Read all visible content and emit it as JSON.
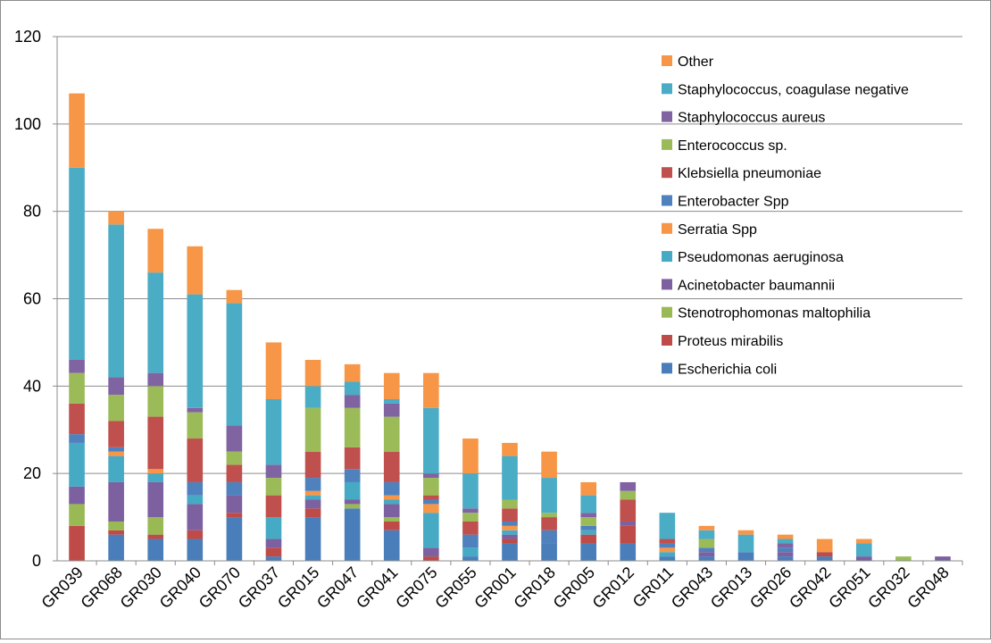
{
  "chart_data": {
    "type": "bar",
    "stacked": true,
    "title": "",
    "xlabel": "",
    "ylabel": "",
    "ylim": [
      0,
      120
    ],
    "yticks": [
      0,
      20,
      40,
      60,
      80,
      100,
      120
    ],
    "grid": true,
    "legend_position": "top-right",
    "categories": [
      "GR039",
      "GR068",
      "GR030",
      "GR040",
      "GR070",
      "GR037",
      "GR015",
      "GR047",
      "GR041",
      "GR075",
      "GR055",
      "GR001",
      "GR018",
      "GR005",
      "GR012",
      "GR011",
      "GR043",
      "GR013",
      "GR026",
      "GR042",
      "GR051",
      "GR032",
      "GR048"
    ],
    "series": [
      {
        "name": "Escherichia coli",
        "color": "#4a7ebb",
        "values": [
          0,
          6,
          5,
          5,
          10,
          1,
          10,
          12,
          7,
          0,
          1,
          4,
          4,
          4,
          4,
          1,
          1,
          2,
          1,
          1,
          0,
          0,
          0
        ]
      },
      {
        "name": "Proteus mirabilis",
        "color": "#be4b48",
        "values": [
          8,
          1,
          1,
          2,
          1,
          2,
          2,
          0,
          2,
          1,
          0,
          1,
          0,
          2,
          4,
          0,
          0,
          0,
          0,
          1,
          0,
          0,
          0
        ]
      },
      {
        "name": "Stenotrophomonas maltophilia",
        "color": "#98b954",
        "values": [
          5,
          2,
          4,
          0,
          0,
          0,
          0,
          1,
          1,
          0,
          0,
          0,
          0,
          0,
          0,
          0,
          0,
          0,
          0,
          0,
          0,
          0,
          0
        ]
      },
      {
        "name": "Acinetobacter baumannii",
        "color": "#7d60a0",
        "values": [
          4,
          9,
          8,
          6,
          4,
          2,
          2,
          1,
          3,
          2,
          0,
          1,
          0,
          0,
          1,
          0,
          1,
          0,
          1,
          0,
          1,
          0,
          1
        ]
      },
      {
        "name": "Pseudomonas aeruginosa",
        "color": "#46aac5",
        "values": [
          10,
          6,
          2,
          2,
          0,
          5,
          1,
          4,
          1,
          8,
          2,
          1,
          0,
          1,
          0,
          1,
          0,
          0,
          0,
          0,
          0,
          0,
          0
        ]
      },
      {
        "name": "Serratia Spp",
        "color": "#f79646",
        "values": [
          0,
          1,
          1,
          0,
          0,
          0,
          1,
          0,
          1,
          2,
          0,
          1,
          0,
          0,
          0,
          1,
          0,
          0,
          0,
          3,
          0,
          0,
          0
        ]
      },
      {
        "name": "Enterobacter Spp",
        "color": "#4f81bd",
        "values": [
          2,
          1,
          0,
          3,
          3,
          0,
          3,
          3,
          3,
          1,
          3,
          1,
          3,
          1,
          0,
          1,
          1,
          0,
          1,
          0,
          0,
          0,
          0
        ]
      },
      {
        "name": "Klebsiella pneumoniae",
        "color": "#c0504d",
        "values": [
          7,
          6,
          12,
          10,
          4,
          5,
          6,
          5,
          7,
          1,
          3,
          3,
          3,
          0,
          5,
          1,
          0,
          0,
          0,
          0,
          0,
          0,
          0
        ]
      },
      {
        "name": "Enterococcus sp.",
        "color": "#9bbb59",
        "values": [
          7,
          6,
          7,
          6,
          3,
          4,
          10,
          9,
          8,
          4,
          2,
          2,
          1,
          2,
          2,
          0,
          2,
          0,
          0,
          0,
          0,
          1,
          0
        ]
      },
      {
        "name": "Staphylococcus aureus",
        "color": "#8064a2",
        "values": [
          3,
          4,
          3,
          1,
          6,
          3,
          0,
          3,
          3,
          1,
          1,
          0,
          0,
          1,
          2,
          0,
          0,
          0,
          1,
          0,
          0,
          0,
          0
        ]
      },
      {
        "name": "Staphylococcus, coagulase negative",
        "color": "#4bacc6",
        "values": [
          44,
          35,
          23,
          26,
          28,
          15,
          5,
          3,
          1,
          15,
          8,
          10,
          8,
          4,
          0,
          6,
          2,
          4,
          1,
          0,
          3,
          0,
          0
        ]
      },
      {
        "name": "Other",
        "color": "#f79646",
        "values": [
          17,
          3,
          10,
          11,
          3,
          13,
          6,
          4,
          6,
          8,
          8,
          3,
          6,
          3,
          0,
          0,
          1,
          1,
          1,
          0,
          1,
          0,
          0
        ]
      }
    ]
  }
}
